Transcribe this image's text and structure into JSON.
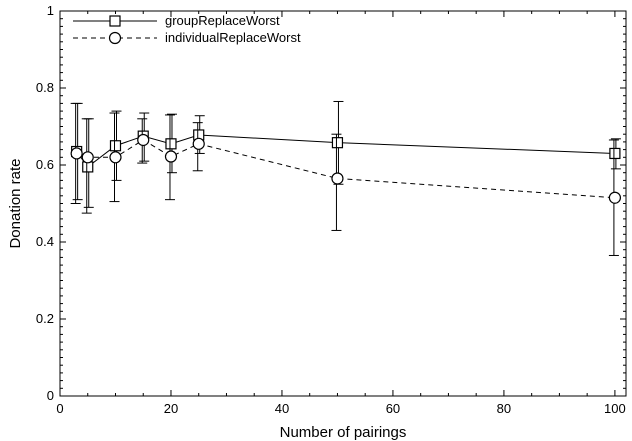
{
  "chart_data": {
    "type": "line",
    "title": "",
    "xlabel": "Number of pairings",
    "ylabel": "Donation rate",
    "xlim": [
      0,
      102
    ],
    "ylim": [
      0,
      1
    ],
    "x_ticks": [
      0,
      20,
      40,
      60,
      80,
      100
    ],
    "y_ticks": [
      0,
      0.2,
      0.4,
      0.6,
      0.8,
      1
    ],
    "x_tick_labels": [
      "0",
      "20",
      "40",
      "60",
      "80",
      "100"
    ],
    "y_tick_labels": [
      "0",
      "0.2",
      "0.4",
      "0.6",
      "0.8",
      "1"
    ],
    "grid": false,
    "legend_position": "top-left",
    "series": [
      {
        "name": "groupReplaceWorst",
        "marker": "square",
        "line_style": "solid",
        "x": [
          3,
          5,
          10,
          15,
          20,
          25,
          50,
          100
        ],
        "y": [
          0.635,
          0.595,
          0.65,
          0.675,
          0.655,
          0.678,
          0.658,
          0.63
        ],
        "y_low": [
          0.51,
          0.49,
          0.56,
          0.61,
          0.58,
          0.63,
          0.55,
          0.59
        ],
        "y_high": [
          0.76,
          0.72,
          0.74,
          0.735,
          0.732,
          0.728,
          0.765,
          0.668
        ]
      },
      {
        "name": "individualReplaceWorst",
        "marker": "circle",
        "line_style": "dashed",
        "x": [
          3,
          5,
          10,
          15,
          20,
          25,
          50,
          100
        ],
        "y": [
          0.63,
          0.62,
          0.62,
          0.665,
          0.622,
          0.655,
          0.565,
          0.515
        ],
        "y_low": [
          0.5,
          0.475,
          0.505,
          0.605,
          0.51,
          0.585,
          0.43,
          0.365
        ],
        "y_high": [
          0.76,
          0.72,
          0.735,
          0.72,
          0.73,
          0.71,
          0.68,
          0.665
        ]
      }
    ]
  }
}
